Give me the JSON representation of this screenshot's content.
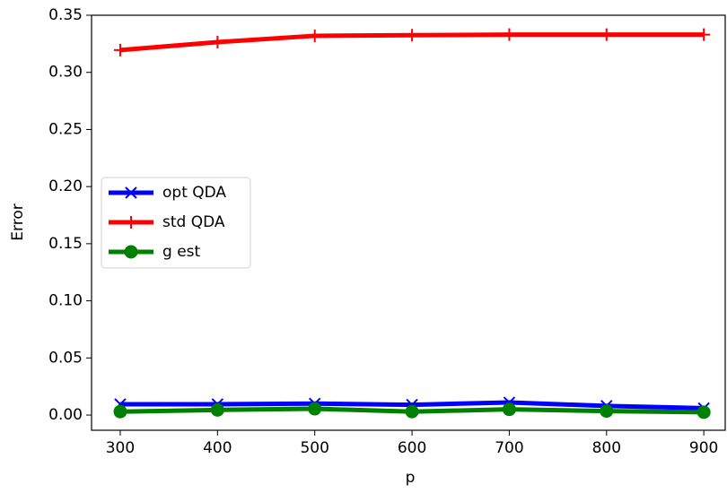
{
  "chart_data": {
    "type": "line",
    "x_label": "p",
    "y_label": "Error",
    "x": [
      300,
      400,
      500,
      600,
      700,
      800,
      900
    ],
    "series": [
      {
        "name": "opt QDA",
        "color": "#0000ff",
        "marker": "x",
        "values": [
          0.0095,
          0.0095,
          0.01,
          0.009,
          0.011,
          0.008,
          0.006
        ]
      },
      {
        "name": "std QDA",
        "color": "#ff0000",
        "marker": "+",
        "values": [
          0.3195,
          0.3265,
          0.332,
          0.3325,
          0.333,
          0.333,
          0.333
        ]
      },
      {
        "name": "g est",
        "color": "#008000",
        "marker": "o",
        "values": [
          0.003,
          0.0045,
          0.0055,
          0.003,
          0.005,
          0.0035,
          0.0025
        ]
      }
    ],
    "xlim": [
      270.5,
      922
    ],
    "ylim": [
      -0.0133,
      0.35
    ],
    "xticks": [
      300,
      400,
      500,
      600,
      700,
      800,
      900
    ],
    "yticks": [
      {
        "value": 0,
        "label": "0.00"
      },
      {
        "value": 0.05,
        "label": "0.05"
      },
      {
        "value": 0.1,
        "label": "0.10"
      },
      {
        "value": 0.15,
        "label": "0.15"
      },
      {
        "value": 0.2,
        "label": "0.20"
      },
      {
        "value": 0.25,
        "label": "0.25"
      },
      {
        "value": 0.3,
        "label": "0.30"
      },
      {
        "value": 0.35,
        "label": "0.35"
      }
    ],
    "legend": "center left",
    "grid": false
  }
}
